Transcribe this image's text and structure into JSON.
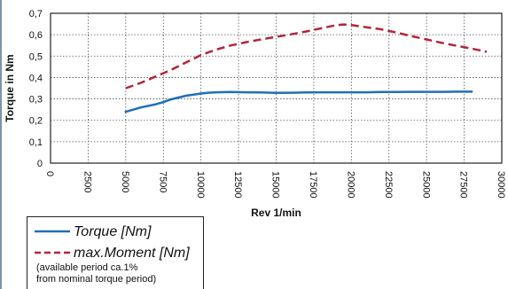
{
  "chart_data": {
    "type": "line",
    "xlabel": "Rev 1/min",
    "ylabel": "Torque in Nm",
    "xlim": [
      0,
      30000
    ],
    "ylim": [
      0,
      0.7
    ],
    "x_ticks": [
      "0",
      "2500",
      "5000",
      "7500",
      "10000",
      "12500",
      "15000",
      "17500",
      "20000",
      "22500",
      "25000",
      "27500",
      "30000"
    ],
    "y_ticks": [
      "0",
      "0,1",
      "0,2",
      "0,3",
      "0,4",
      "0,5",
      "0,6",
      "0,7"
    ],
    "grid": "dotted",
    "legend_position": "bottom-left, below plot",
    "series": [
      {
        "name": "Torque [Nm]",
        "color": "#1f6fb8",
        "style": "solid",
        "x": [
          5000,
          6000,
          7000,
          7500,
          8000,
          9000,
          10000,
          10500,
          11000,
          12000,
          13000,
          14000,
          15000,
          16000,
          17000,
          18000,
          19000,
          20000,
          21000,
          22000,
          23000,
          24000,
          25000,
          26000,
          27000,
          28000
        ],
        "y": [
          0.24,
          0.26,
          0.275,
          0.285,
          0.298,
          0.315,
          0.325,
          0.329,
          0.331,
          0.332,
          0.331,
          0.33,
          0.328,
          0.329,
          0.33,
          0.331,
          0.331,
          0.331,
          0.331,
          0.332,
          0.332,
          0.333,
          0.333,
          0.333,
          0.334,
          0.334
        ]
      },
      {
        "name": "max.Moment [Nm]",
        "color": "#b3263a",
        "style": "dashed",
        "x": [
          5000,
          6000,
          7000,
          8000,
          9000,
          10000,
          11000,
          12000,
          13000,
          14000,
          15000,
          16000,
          17000,
          18000,
          19000,
          19500,
          20000,
          21000,
          22000,
          23000,
          24000,
          25000,
          26000,
          27000,
          28000,
          29000
        ],
        "y": [
          0.35,
          0.375,
          0.405,
          0.435,
          0.47,
          0.505,
          0.53,
          0.55,
          0.565,
          0.578,
          0.59,
          0.602,
          0.615,
          0.63,
          0.645,
          0.648,
          0.645,
          0.635,
          0.625,
          0.61,
          0.593,
          0.578,
          0.562,
          0.548,
          0.535,
          0.52
        ]
      }
    ]
  },
  "legend": {
    "entries": [
      {
        "label": "Torque [Nm]",
        "color": "#1f6fb8",
        "style": "solid"
      },
      {
        "label": "max.Moment [Nm]",
        "color": "#b3263a",
        "style": "dashed"
      }
    ],
    "note_line1": "(available period ca.1%",
    "note_line2": "from nominal torque period)"
  }
}
